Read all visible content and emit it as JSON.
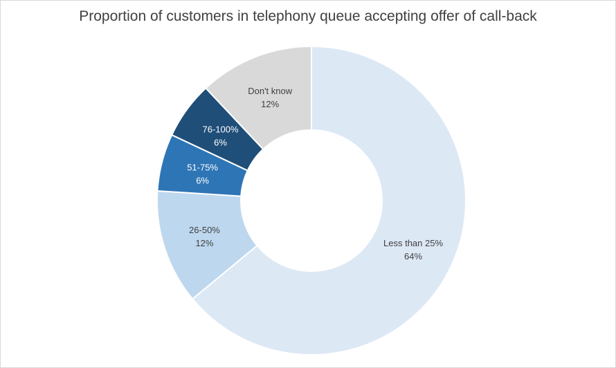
{
  "chart_data": {
    "type": "pie",
    "variant": "doughnut",
    "title": "Proportion of customers in telephony queue accepting offer of call-back",
    "slices": [
      {
        "label": "Less than 25%",
        "value": 64,
        "value_label": "64%",
        "color": "#dde8f5",
        "text_color": "#404040"
      },
      {
        "label": "26-50%",
        "value": 12,
        "value_label": "12%",
        "color": "#bdd7ee",
        "text_color": "#404040"
      },
      {
        "label": "51-75%",
        "value": 6,
        "value_label": "6%",
        "color": "#2e75b6",
        "text_color": "#ffffff"
      },
      {
        "label": "76-100%",
        "value": 6,
        "value_label": "6%",
        "color": "#1f4e79",
        "text_color": "#ffffff"
      },
      {
        "label": "Don't know",
        "value": 12,
        "value_label": "12%",
        "color": "#d9d9d9",
        "text_color": "#404040"
      }
    ],
    "legend": "none"
  }
}
